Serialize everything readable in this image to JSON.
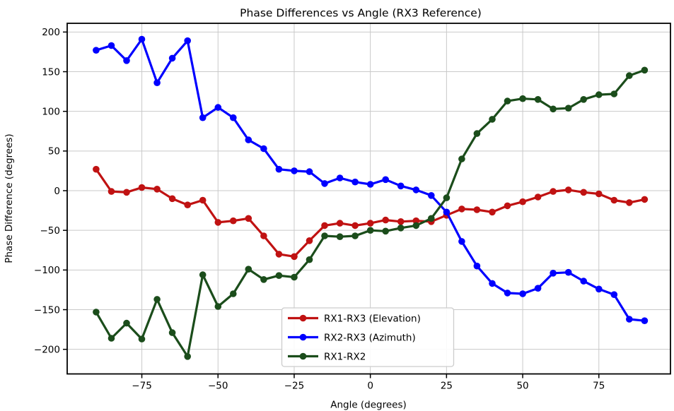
{
  "figure": {
    "background": "#ffffff"
  },
  "chart_data": {
    "type": "line",
    "title": "Phase Differences vs Angle (RX3 Reference)",
    "xlabel": "Angle (degrees)",
    "ylabel": "Phase Difference (degrees)",
    "x": [
      -90,
      -85,
      -80,
      -75,
      -70,
      -65,
      -60,
      -55,
      -50,
      -45,
      -40,
      -35,
      -30,
      -25,
      -20,
      -15,
      -10,
      -5,
      0,
      5,
      10,
      15,
      20,
      25,
      30,
      35,
      40,
      45,
      50,
      55,
      60,
      65,
      70,
      75,
      80,
      85,
      90
    ],
    "series": [
      {
        "name": "RX1-RX3 (Elevation)",
        "color": "#C01212",
        "values": [
          27,
          -1,
          -2,
          4,
          2,
          -10,
          -18,
          -12,
          -40,
          -38,
          -35,
          -57,
          -80,
          -83,
          -63,
          -44,
          -41,
          -44,
          -41,
          -37,
          -39,
          -38,
          -39,
          -31,
          -23,
          -24,
          -27,
          -19,
          -14,
          -8,
          -1,
          1,
          -2,
          -4,
          -12,
          -15,
          -11
        ]
      },
      {
        "name": "RX2-RX3 (Azimuth)",
        "color": "#0000FF",
        "values": [
          177,
          183,
          164,
          191,
          136,
          167,
          189,
          92,
          105,
          92,
          64,
          53,
          27,
          25,
          24,
          9,
          16,
          11,
          8,
          14,
          6,
          1,
          -6,
          -27,
          -64,
          -95,
          -117,
          -129,
          -130,
          -123,
          -104,
          -103,
          -114,
          -124,
          -131,
          -162,
          -164
        ]
      },
      {
        "name": "RX1-RX2",
        "color": "#1B4D1B",
        "values": [
          -153,
          -186,
          -167,
          -187,
          -137,
          -179,
          -209,
          -106,
          -146,
          -130,
          -99,
          -112,
          -107,
          -109,
          -87,
          -57,
          -58,
          -57,
          -50,
          -51,
          -47,
          -44,
          -35,
          -9,
          40,
          72,
          90,
          113,
          116,
          115,
          103,
          104,
          115,
          121,
          122,
          145,
          152
        ]
      }
    ],
    "xlim": [
      -99.5,
      98.5
    ],
    "ylim": [
      -231,
      211
    ],
    "xticks": [
      -75,
      -50,
      -25,
      0,
      25,
      50,
      75
    ],
    "yticks": [
      200,
      150,
      100,
      50,
      0,
      -50,
      -100,
      -150,
      -200
    ],
    "grid": true,
    "grid_color": "#c9c9c9",
    "axis_color": "#000000",
    "legend_position": "lower center",
    "legend_border_color": "#cccccc",
    "marker": "circle",
    "line_width": 3.2
  }
}
